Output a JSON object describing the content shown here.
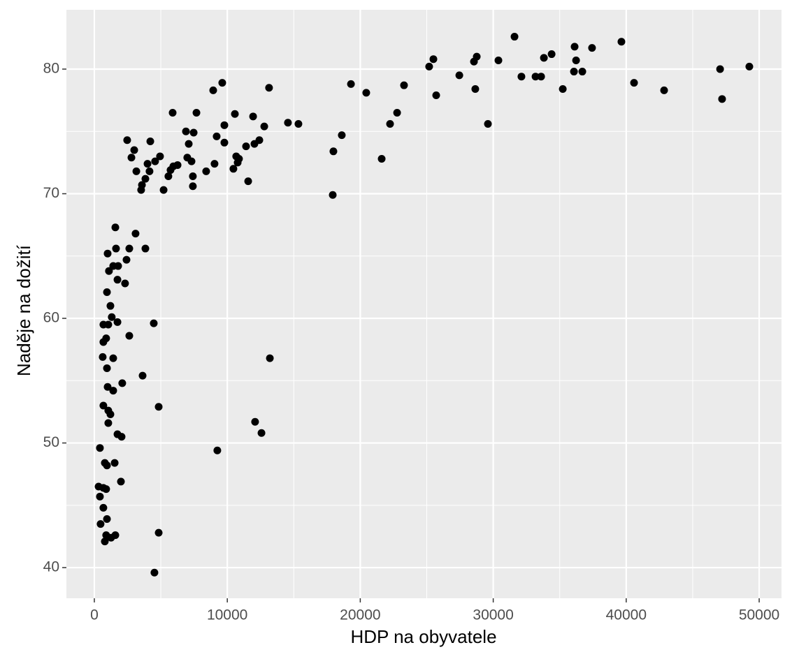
{
  "chart_data": {
    "type": "scatter",
    "x_label": "HDP na obyvatele",
    "y_label": "Naděje na dožití",
    "color": "#000000",
    "xlim": [
      -2100,
      51680
    ],
    "ylim": [
      37.54,
      84.76
    ],
    "xticks": [
      0,
      10000,
      20000,
      30000,
      40000,
      50000
    ],
    "yticks": [
      40,
      50,
      60,
      70,
      80
    ],
    "grid": true,
    "x": [
      31600,
      39640,
      37430,
      36120,
      34390,
      33810,
      28760,
      25500,
      25180,
      28550,
      30390,
      47060,
      49260,
      36070,
      36700,
      36230,
      27450,
      32120,
      33180,
      33600,
      40590,
      42850,
      35230,
      28650,
      25710,
      19300,
      20450,
      23290,
      13140,
      9620,
      8940,
      47210,
      22770,
      22240,
      29600,
      14560,
      15350,
      18610,
      5890,
      7680,
      10570,
      11940,
      12780,
      9780,
      6890,
      7470,
      9200,
      12410,
      12040,
      2470,
      4210,
      9780,
      7100,
      11410,
      3000,
      17980,
      4940,
      10670,
      2790,
      6990,
      21610,
      10880,
      7310,
      10780,
      4570,
      4000,
      9040,
      6260,
      5940,
      3160,
      5730,
      4150,
      8410,
      10460,
      5570,
      7410,
      3840,
      11570,
      3580,
      7410,
      5210,
      3520,
      17930,
      1580,
      3100,
      2630,
      1630,
      3840,
      1000,
      2420,
      1420,
      1790,
      1100,
      1740,
      2310,
      950,
      1210,
      1310,
      1740,
      680,
      1050,
      4470,
      2630,
      890,
      680,
      630,
      1420,
      13200,
      950,
      3630,
      2100,
      1000,
      1420,
      680,
      4840,
      1050,
      1210,
      1050,
      12090,
      12570,
      1740,
      2050,
      9250,
      420,
      790,
      1530,
      950,
      2000,
      320,
      680,
      890,
      420,
      680,
      950,
      470,
      890,
      1580,
      1260,
      4840,
      790,
      4520
    ],
    "values": [
      82.6,
      82.2,
      81.7,
      81.8,
      81.2,
      80.9,
      81.0,
      80.8,
      80.2,
      80.6,
      80.7,
      80.0,
      80.2,
      79.8,
      79.8,
      80.7,
      79.5,
      79.4,
      79.4,
      79.4,
      78.9,
      78.3,
      78.4,
      78.4,
      77.9,
      78.8,
      78.1,
      78.7,
      78.5,
      78.9,
      78.3,
      77.6,
      76.5,
      75.6,
      75.6,
      75.7,
      75.6,
      74.7,
      76.5,
      76.5,
      76.4,
      76.2,
      75.4,
      75.5,
      75.0,
      74.9,
      74.6,
      74.3,
      74.0,
      74.3,
      74.2,
      74.1,
      74.0,
      73.8,
      73.5,
      73.4,
      73.0,
      73.0,
      72.9,
      72.9,
      72.8,
      72.8,
      72.6,
      72.5,
      72.6,
      72.4,
      72.4,
      72.3,
      72.2,
      71.8,
      71.9,
      71.8,
      71.8,
      72.0,
      71.4,
      71.4,
      71.2,
      71.0,
      70.7,
      70.6,
      70.3,
      70.3,
      69.9,
      67.3,
      66.8,
      65.6,
      65.6,
      65.6,
      65.2,
      64.7,
      64.2,
      64.2,
      63.8,
      63.1,
      62.8,
      62.1,
      61.0,
      60.1,
      59.7,
      59.5,
      59.5,
      59.6,
      58.6,
      58.4,
      58.1,
      56.9,
      56.8,
      56.8,
      56.0,
      55.4,
      54.8,
      54.5,
      54.2,
      53.0,
      52.9,
      52.6,
      52.3,
      51.6,
      51.7,
      50.8,
      50.7,
      50.5,
      49.4,
      49.6,
      48.4,
      48.4,
      48.2,
      46.9,
      46.5,
      46.4,
      46.3,
      45.7,
      44.8,
      43.9,
      43.5,
      42.6,
      42.6,
      42.4,
      42.8,
      42.1,
      39.6
    ]
  }
}
